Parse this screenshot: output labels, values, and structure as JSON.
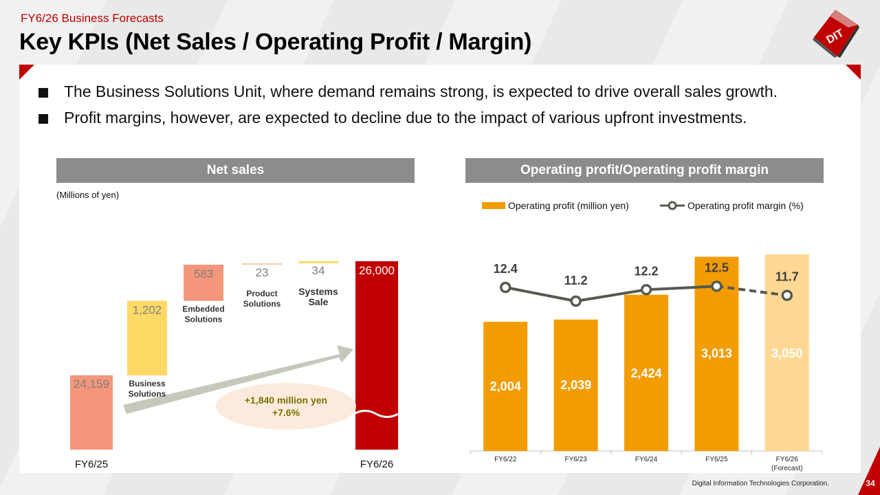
{
  "header": {
    "subtitle": "FY6/26   Business Forecasts",
    "title": "Key KPIs (Net Sales / Operating Profit / Margin)"
  },
  "logo_text": "DIT",
  "bullets": [
    "The Business Solutions Unit, where demand remains strong, is expected to drive overall sales growth.",
    "Profit margins, however, are expected to decline due to the impact of various upfront investments."
  ],
  "footer": {
    "company": "Digital Information Technologies Corporation.",
    "page": "34"
  },
  "colors": {
    "accent": "#c00000",
    "salmon": "#f4967a",
    "gold": "#ffd966",
    "orange": "#f29c00",
    "forecast": "#ffd993",
    "line": "#555a50"
  },
  "chart_data": [
    {
      "type": "bar",
      "subtype": "waterfall",
      "title": "Net sales",
      "unit_note": "(Millions of yen)",
      "start": {
        "label": "FY6/25",
        "value": 24159,
        "display": "24,159"
      },
      "steps": [
        {
          "label": "Business Solutions",
          "value": 1202,
          "display": "1,202",
          "color": "#ffd966"
        },
        {
          "label": "Embedded Solutions",
          "value": 583,
          "display": "583",
          "color": "#f4967a"
        },
        {
          "label": "Product Solutions",
          "value": 23,
          "display": "23",
          "color": "#f8cbad"
        },
        {
          "label": "Systems Sale",
          "value": 34,
          "display": "34",
          "color": "#ffd966"
        }
      ],
      "end": {
        "label": "FY6/26",
        "value": 26000,
        "display": "26,000"
      },
      "annotation": {
        "line1": "+1,840 million yen",
        "line2": "+7.6%"
      }
    },
    {
      "type": "bar",
      "subtype": "bar+line",
      "title": "Operating profit/Operating profit margin",
      "categories": [
        "FY6/22",
        "FY6/23",
        "FY6/24",
        "FY6/25",
        "FY6/26"
      ],
      "category_sub": [
        "",
        "",
        "",
        "",
        "(Forecast)"
      ],
      "series": [
        {
          "name": "Operating profit (million yen)",
          "kind": "bar",
          "values": [
            2004,
            2039,
            2424,
            3013,
            3050
          ],
          "labels": [
            "2,004",
            "2,039",
            "2,424",
            "3,013",
            "3,050"
          ]
        },
        {
          "name": "Operating profit margin (%)",
          "kind": "line",
          "values": [
            12.4,
            11.2,
            12.2,
            12.5,
            11.7
          ],
          "labels": [
            "12.4",
            "11.2",
            "12.2",
            "12.5",
            "11.7"
          ]
        }
      ],
      "forecast_index": 4,
      "ylim_bars": [
        0,
        3050
      ],
      "ylim_line": [
        8.9,
        13.9
      ]
    }
  ]
}
